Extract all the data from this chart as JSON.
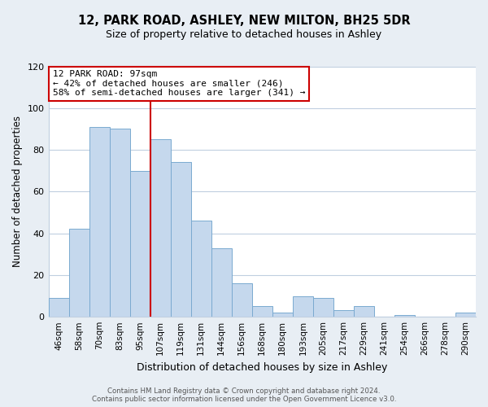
{
  "title": "12, PARK ROAD, ASHLEY, NEW MILTON, BH25 5DR",
  "subtitle": "Size of property relative to detached houses in Ashley",
  "xlabel": "Distribution of detached houses by size in Ashley",
  "ylabel": "Number of detached properties",
  "bins": [
    "46sqm",
    "58sqm",
    "70sqm",
    "83sqm",
    "95sqm",
    "107sqm",
    "119sqm",
    "131sqm",
    "144sqm",
    "156sqm",
    "168sqm",
    "180sqm",
    "193sqm",
    "205sqm",
    "217sqm",
    "229sqm",
    "241sqm",
    "254sqm",
    "266sqm",
    "278sqm",
    "290sqm"
  ],
  "values": [
    9,
    42,
    91,
    90,
    70,
    85,
    74,
    46,
    33,
    16,
    5,
    2,
    10,
    9,
    3,
    5,
    0,
    1,
    0,
    0,
    2
  ],
  "bar_color": "#c5d8ed",
  "bar_edge_color": "#7aaad0",
  "highlight_bar_index": 4,
  "vline_color": "#cc0000",
  "ylim": [
    0,
    120
  ],
  "yticks": [
    0,
    20,
    40,
    60,
    80,
    100,
    120
  ],
  "annotation_title": "12 PARK ROAD: 97sqm",
  "annotation_line1": "← 42% of detached houses are smaller (246)",
  "annotation_line2": "58% of semi-detached houses are larger (341) →",
  "annotation_box_color": "#ffffff",
  "annotation_box_edge": "#cc0000",
  "footer_line1": "Contains HM Land Registry data © Crown copyright and database right 2024.",
  "footer_line2": "Contains public sector information licensed under the Open Government Licence v3.0.",
  "background_color": "#e8eef4",
  "plot_bg_color": "#ffffff",
  "grid_color": "#c0cfe0"
}
